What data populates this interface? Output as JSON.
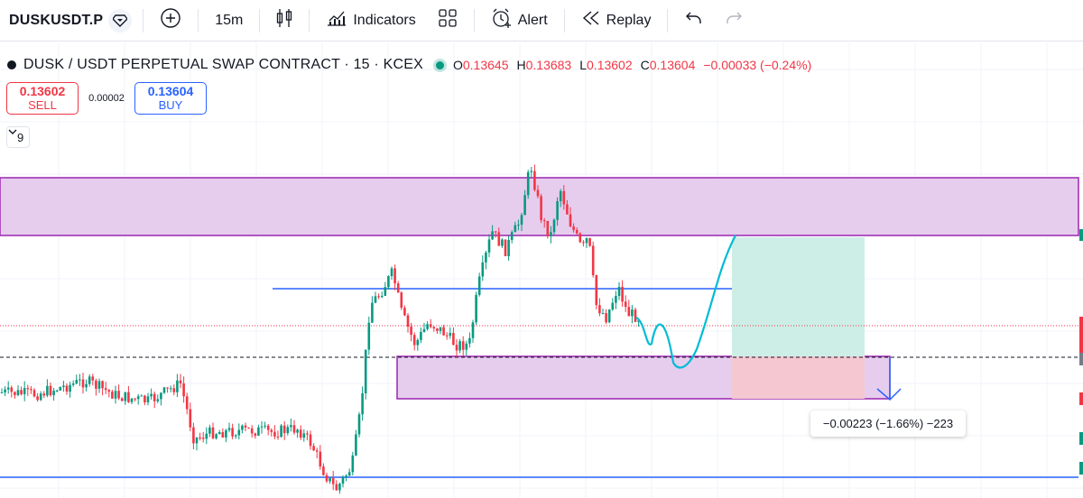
{
  "toolbar": {
    "symbol": "DUSKUSDT.P",
    "interval": "15m",
    "indicators_label": "Indicators",
    "alert_label": "Alert",
    "replay_label": "Replay"
  },
  "legend": {
    "title": "DUSK / USDT PERPETUAL SWAP CONTRACT · 15 · KCEX",
    "o_key": "O",
    "o_val": "0.13645",
    "h_key": "H",
    "h_val": "0.13683",
    "l_key": "L",
    "l_val": "0.13602",
    "c_key": "C",
    "c_val": "0.13604",
    "change": "−0.00033 (−0.24%)"
  },
  "trade": {
    "sell_price": "0.13602",
    "sell_label": "SELL",
    "spread": "0.00002",
    "buy_price": "0.13604",
    "buy_label": "BUY"
  },
  "indicators_collapsed_count": "9",
  "measure_label": "−0.00223 (−1.66%) −223",
  "colors": {
    "up": "#089981",
    "down": "#f23645",
    "zone_fill": "#e6cdee",
    "zone_border": "#9c27b0",
    "blue_line": "#2962ff",
    "projection": "#00bcd4",
    "target_fill": "#cdeee6",
    "stop_fill": "#f4c7d1"
  },
  "icons": [
    "diamond-alert-icon",
    "add-circle-icon",
    "candles-icon",
    "indicators-icon",
    "layouts-icon",
    "alarm-clock-icon",
    "replay-icon",
    "undo-icon",
    "redo-icon"
  ]
}
